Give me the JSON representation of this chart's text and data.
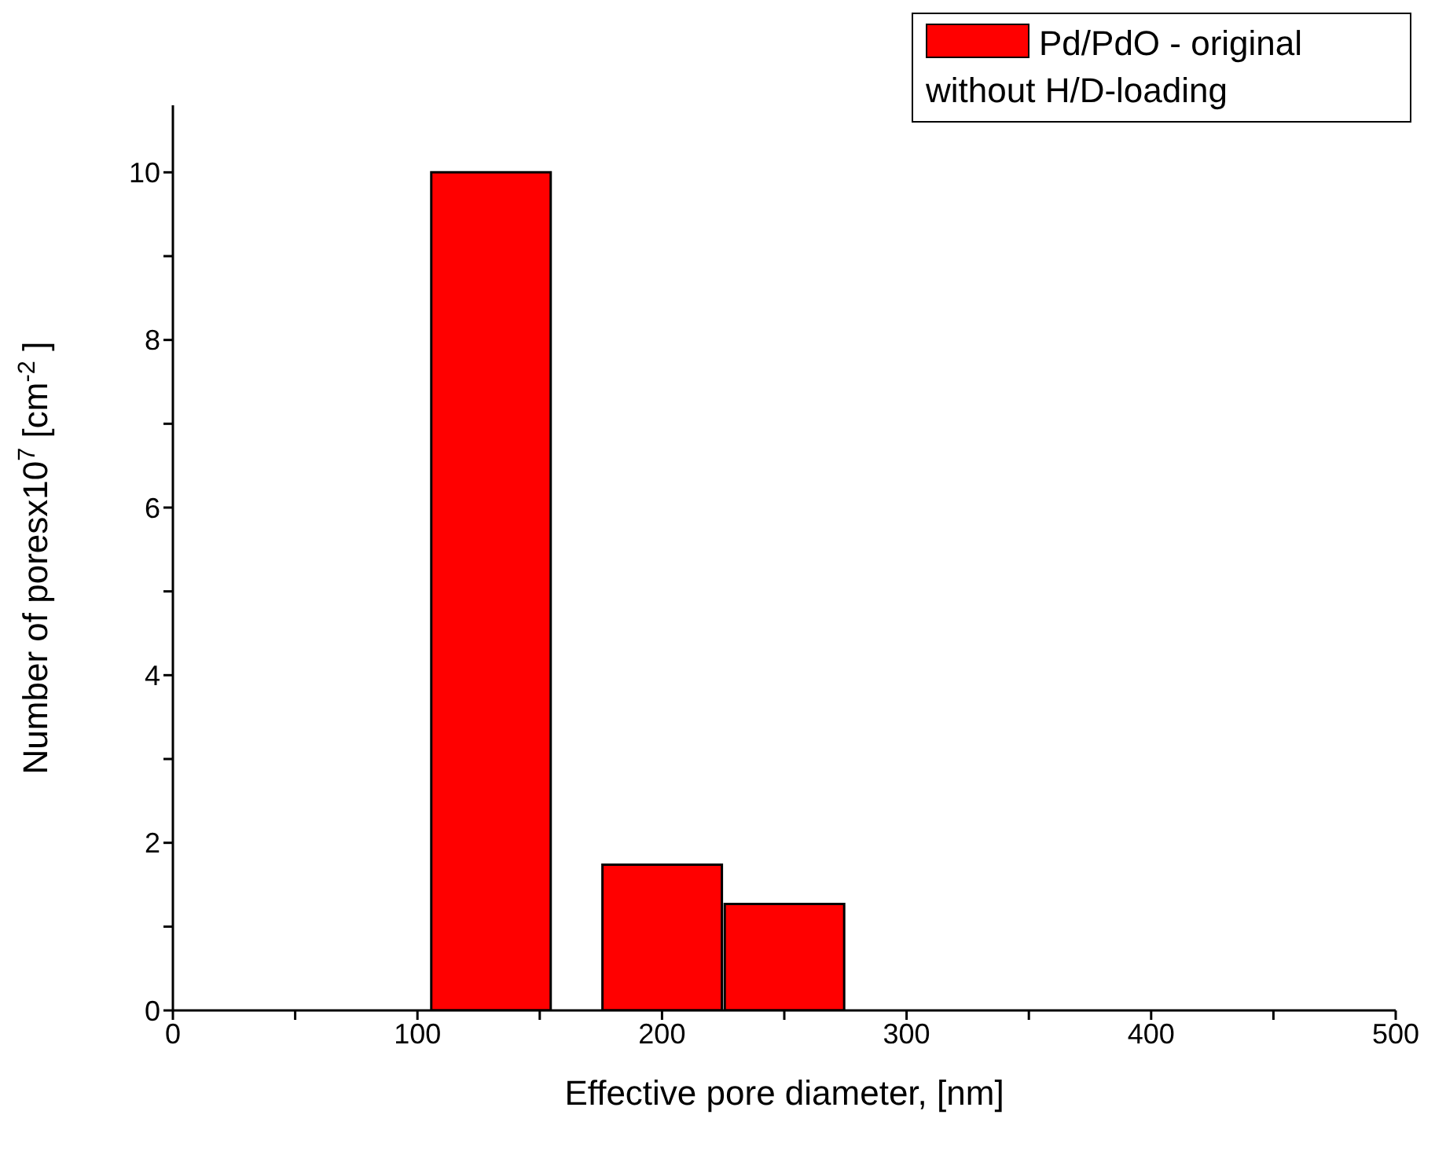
{
  "chart_data": {
    "type": "bar",
    "xlabel": "Effective pore diameter, [nm]",
    "ylabel": "Number of poresx10$^{7}$ [cm$^{-2}$]",
    "x": [
      130,
      200,
      250
    ],
    "series": [
      {
        "name": "Pd/PdO - original without H/D-loading",
        "color": "#ff0000",
        "values": [
          10,
          1.74,
          1.27
        ]
      }
    ],
    "xlim": [
      0,
      500
    ],
    "xticks": [
      0,
      {
        "value": 50,
        "label": null
      },
      100,
      {
        "value": 150,
        "label": null
      },
      200,
      {
        "value": 250,
        "label": null
      },
      300,
      {
        "value": 350,
        "label": null
      },
      400,
      {
        "value": 450,
        "label": null
      },
      500
    ],
    "ylim": [
      0,
      10.8
    ],
    "yticks": [
      0,
      {
        "value": 1,
        "label": null
      },
      2,
      {
        "value": 3,
        "label": null
      },
      4,
      {
        "value": 5,
        "label": null
      },
      6,
      {
        "value": 7,
        "label": null
      },
      8,
      {
        "value": 9,
        "label": null
      },
      10
    ],
    "grid": false,
    "legend": "top right"
  }
}
